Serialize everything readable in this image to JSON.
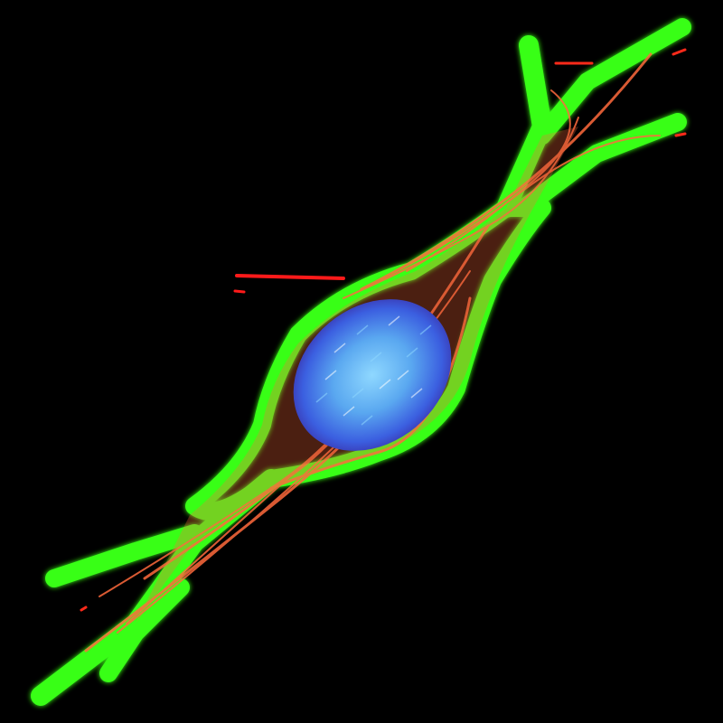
{
  "image": {
    "subject": "fluorescence-microscopy-cell",
    "colors": {
      "background": "#000000",
      "membrane": "#39ff14",
      "cytoskeleton": "#ff6a3d",
      "nucleus": "#3b5fe0",
      "nucleus_highlight": "#8fd8ff"
    }
  }
}
